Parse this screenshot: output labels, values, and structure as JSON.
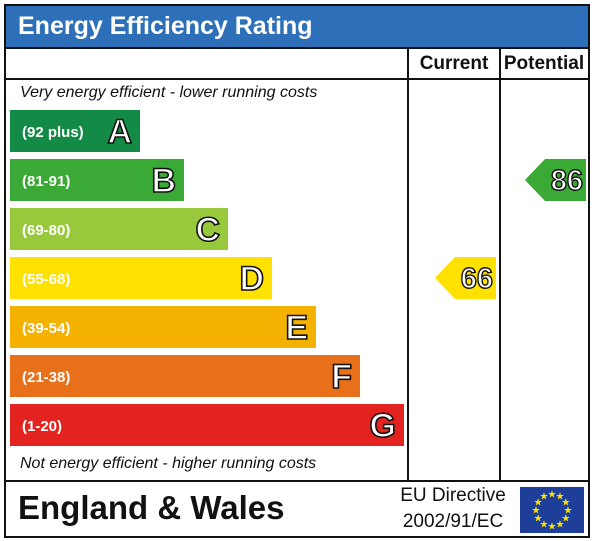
{
  "header": {
    "title": "Energy Efficiency Rating"
  },
  "columns": {
    "current": "Current",
    "potential": "Potential"
  },
  "notes": {
    "top": "Very energy efficient - lower running costs",
    "bottom": "Not energy efficient - higher running costs"
  },
  "footer": {
    "region": "England & Wales",
    "directive_line1": "EU Directive",
    "directive_line2": "2002/91/EC"
  },
  "colors": {
    "title_bar": "#2d6fb8",
    "band_a": "#138b46",
    "band_b": "#3aa935",
    "band_c": "#98c93c",
    "band_d": "#ffe100",
    "band_e": "#f5b100",
    "band_f": "#e8701b",
    "band_g": "#e3231f",
    "eu_flag": "#1d3f9a",
    "eu_star": "#ffe100"
  },
  "chart_data": {
    "type": "bar",
    "title": "Energy Efficiency Rating",
    "categories": [
      "A",
      "B",
      "C",
      "D",
      "E",
      "F",
      "G"
    ],
    "ranges": [
      "(92 plus)",
      "(81-91)",
      "(69-80)",
      "(55-68)",
      "(39-54)",
      "(21-38)",
      "(1-20)"
    ],
    "band_colors": [
      "#138b46",
      "#3aa935",
      "#98c93c",
      "#ffe100",
      "#f5b100",
      "#e8701b",
      "#e3231f"
    ],
    "current": {
      "value": 66,
      "band": "D",
      "color": "#ffe100"
    },
    "potential": {
      "value": 86,
      "band": "B",
      "color": "#3aa935"
    }
  }
}
